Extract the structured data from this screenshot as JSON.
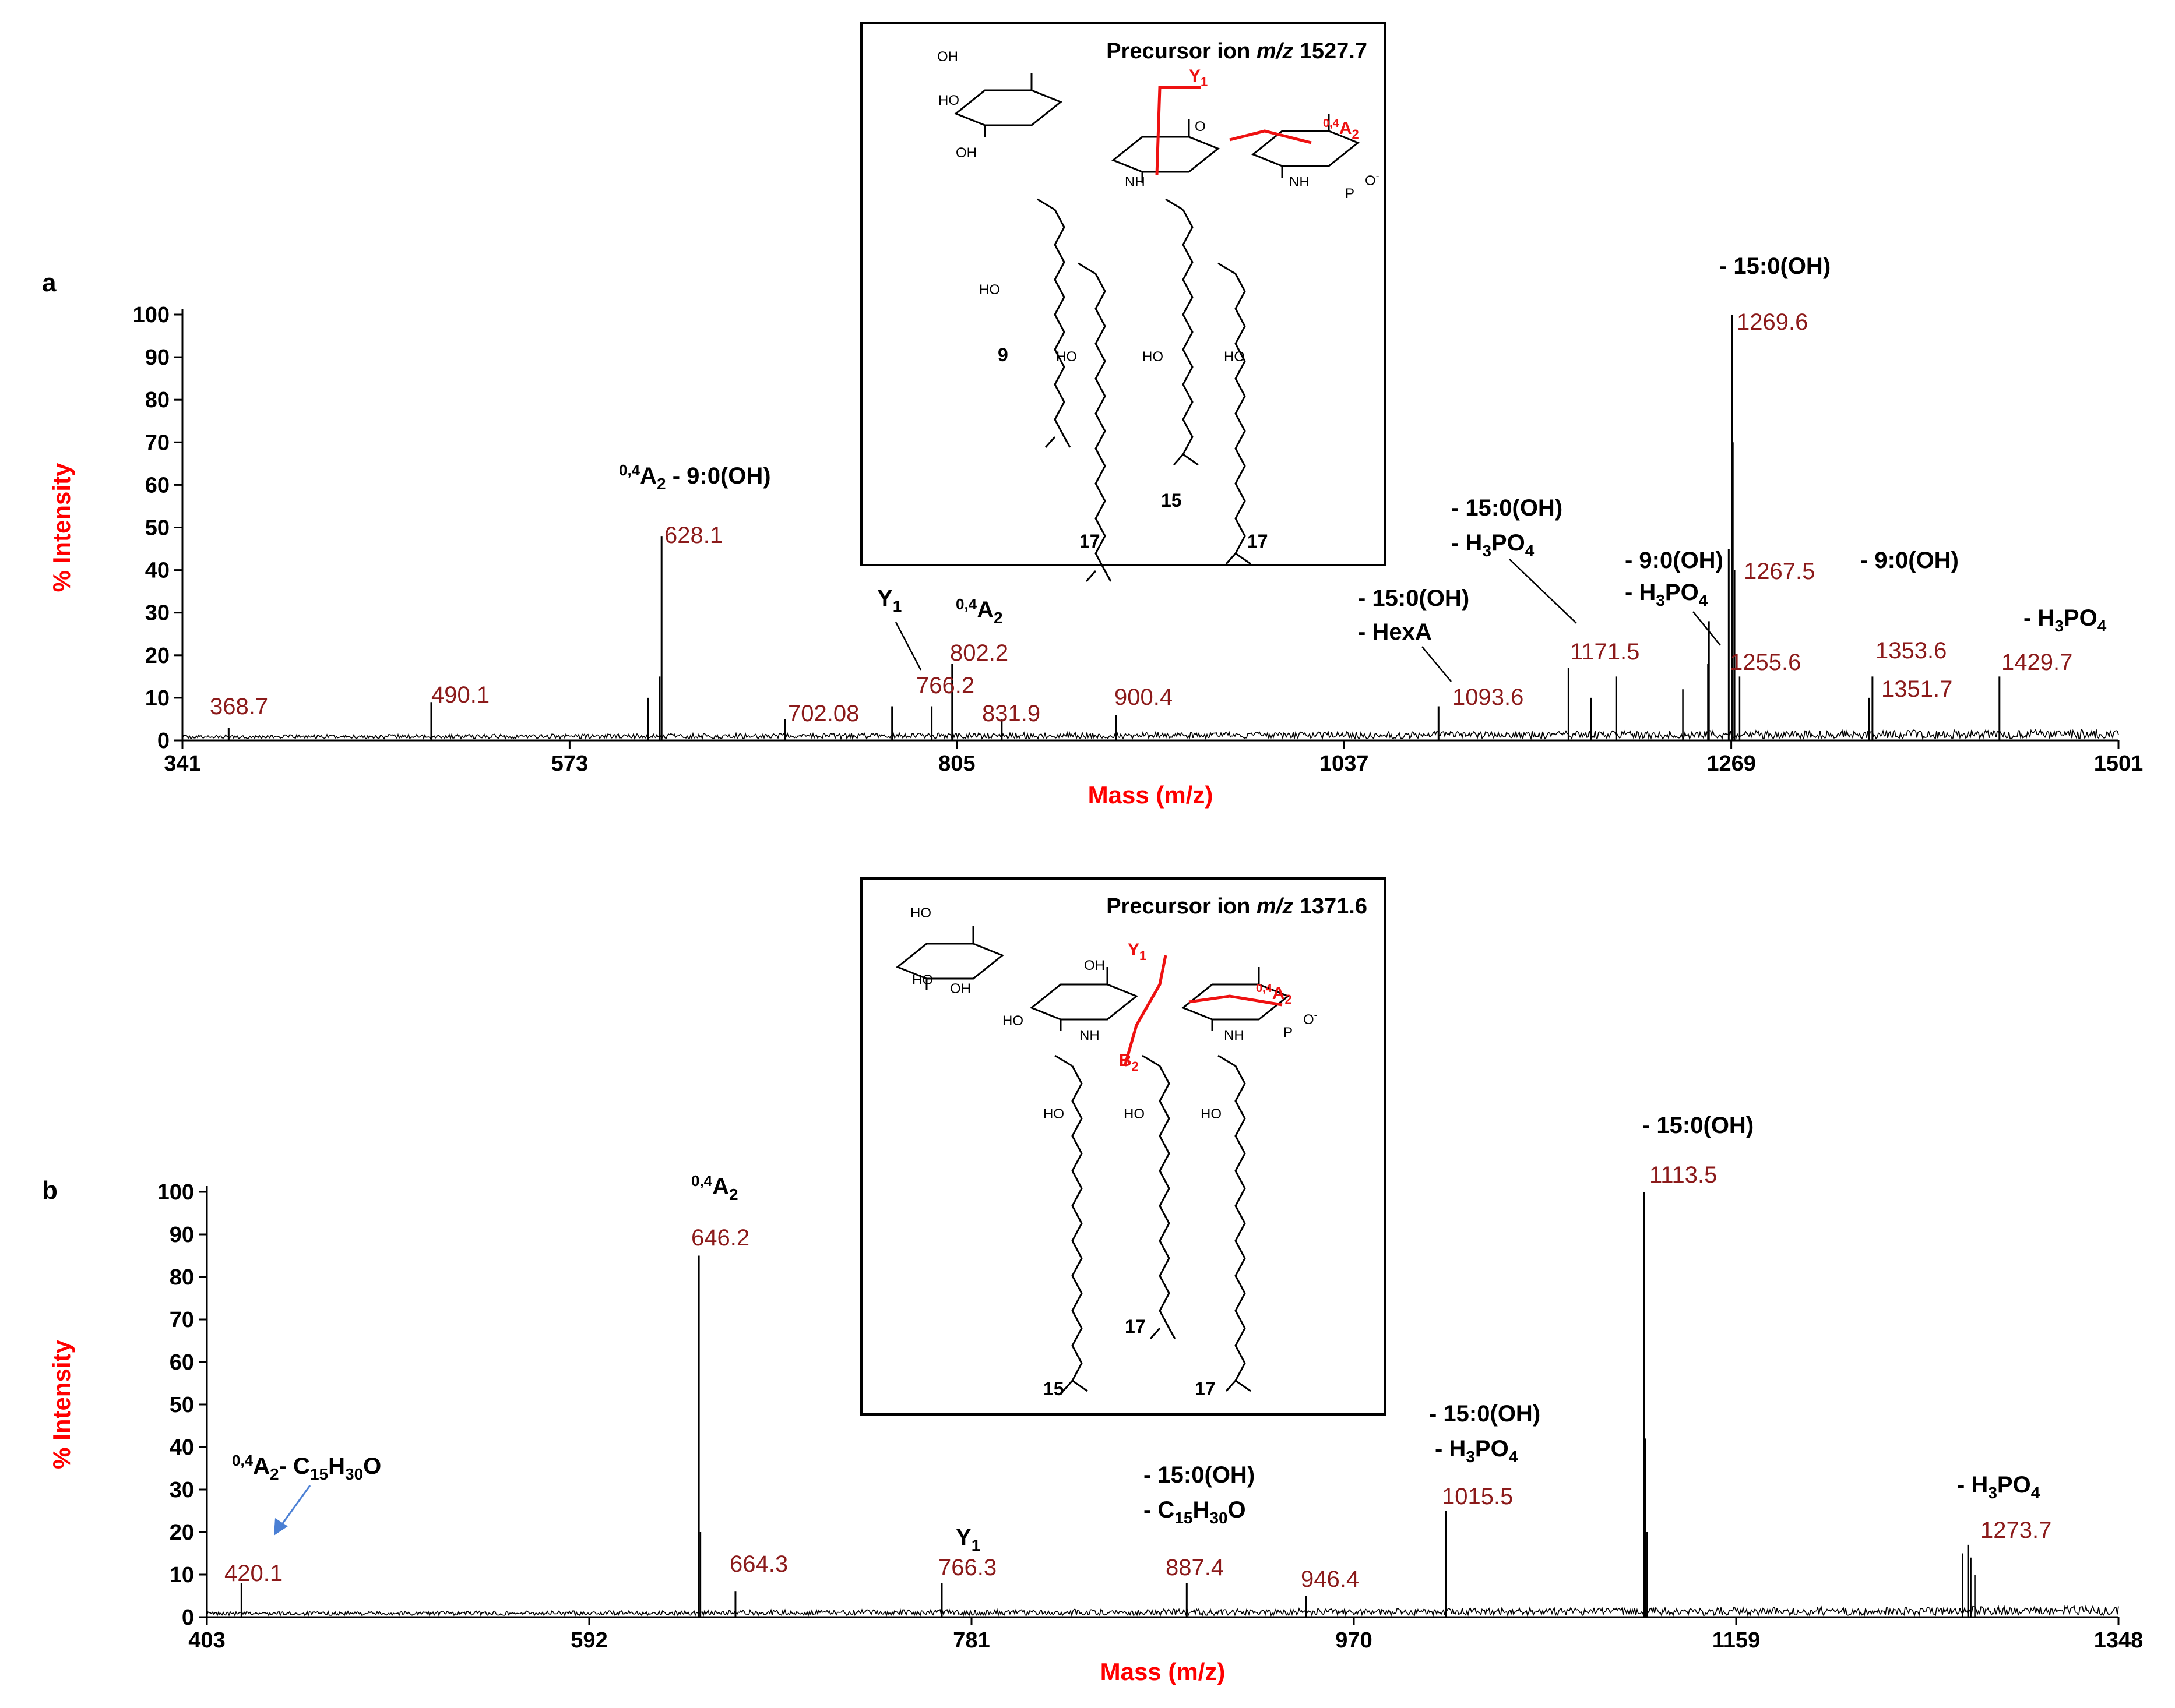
{
  "chart_data": [
    {
      "panel": "a",
      "type": "line",
      "title": "",
      "xlabel": "Mass (m/z)",
      "ylabel": "% Intensity",
      "xlim": [
        341,
        1501
      ],
      "ylim": [
        0,
        100
      ],
      "xticks": [
        341,
        573,
        805,
        1037,
        1269,
        1501
      ],
      "yticks": [
        0,
        10,
        20,
        30,
        40,
        50,
        60,
        70,
        80,
        90,
        100
      ],
      "peaks": [
        {
          "x": 368.7,
          "y": 3,
          "label": "368.7"
        },
        {
          "x": 490.1,
          "y": 9,
          "label": "490.1"
        },
        {
          "x": 628.1,
          "y": 48,
          "label": "628.1"
        },
        {
          "x": 702.08,
          "y": 5,
          "label": "702.08"
        },
        {
          "x": 766.2,
          "y": 8,
          "label": "766.2"
        },
        {
          "x": 802.2,
          "y": 18,
          "label": "802.2"
        },
        {
          "x": 831.9,
          "y": 5,
          "label": "831.9"
        },
        {
          "x": 900.4,
          "y": 6,
          "label": "900.4"
        },
        {
          "x": 1093.6,
          "y": 8,
          "label": "1093.6"
        },
        {
          "x": 1171.5,
          "y": 17,
          "label": "1171.5"
        },
        {
          "x": 1255.6,
          "y": 28,
          "label": "1255.6"
        },
        {
          "x": 1267.5,
          "y": 45,
          "label": "1267.5"
        },
        {
          "x": 1269.6,
          "y": 100,
          "label": "1269.6"
        },
        {
          "x": 1351.7,
          "y": 10,
          "label": "1351.7"
        },
        {
          "x": 1353.6,
          "y": 15,
          "label": "1353.6"
        },
        {
          "x": 1429.7,
          "y": 15,
          "label": "1429.7"
        }
      ],
      "minor_peaks": [
        {
          "x": 620,
          "y": 10
        },
        {
          "x": 627,
          "y": 15
        },
        {
          "x": 790,
          "y": 8
        },
        {
          "x": 1185,
          "y": 10
        },
        {
          "x": 1200,
          "y": 15
        },
        {
          "x": 1240,
          "y": 12
        },
        {
          "x": 1255,
          "y": 18
        },
        {
          "x": 1270,
          "y": 70
        },
        {
          "x": 1271,
          "y": 40
        },
        {
          "x": 1274,
          "y": 15
        }
      ],
      "annotations": [
        {
          "text_sup": "0,4",
          "text": "A",
          "text_sub": "2",
          "text_after": " - 9:0(OH)"
        },
        {
          "text": "Y",
          "text_sub": "1"
        },
        {
          "text_sup": "0,4",
          "text": "A",
          "text_sub": "2"
        },
        {
          "line1": "- 15:0(OH)",
          "line2": "- HexA"
        },
        {
          "line1": "- 15:0(OH)",
          "line2_pre": "- H",
          "line2_sub": "3",
          "line2_mid": "PO",
          "line2_sub2": "4"
        },
        {
          "line1": "- 9:0(OH)",
          "line2_pre": "- H",
          "line2_sub": "3",
          "line2_mid": "PO",
          "line2_sub2": "4"
        },
        {
          "line1": "- 15:0(OH)"
        },
        {
          "line1": "- 9:0(OH)"
        },
        {
          "line1_pre": "- H",
          "line1_sub": "3",
          "line1_mid": "PO",
          "line1_sub2": "4"
        }
      ],
      "inset": {
        "title_pre": "Precursor ion ",
        "title_ital": "m/z",
        "title_post": " 1527.7",
        "chain_labels": [
          "9",
          "17",
          "15",
          "17"
        ]
      }
    },
    {
      "panel": "b",
      "type": "line",
      "title": "",
      "xlabel": "Mass (m/z)",
      "ylabel": "% Intensity",
      "xlim": [
        403,
        1348
      ],
      "ylim": [
        0,
        100
      ],
      "xticks": [
        403,
        592,
        781,
        970,
        1159,
        1348
      ],
      "yticks": [
        0,
        10,
        20,
        30,
        40,
        50,
        60,
        70,
        80,
        90,
        100
      ],
      "peaks": [
        {
          "x": 420.1,
          "y": 8,
          "label": "420.1"
        },
        {
          "x": 646.2,
          "y": 85,
          "label": "646.2"
        },
        {
          "x": 664.3,
          "y": 6,
          "label": "664.3"
        },
        {
          "x": 766.3,
          "y": 8,
          "label": "766.3"
        },
        {
          "x": 887.4,
          "y": 8,
          "label": "887.4"
        },
        {
          "x": 946.4,
          "y": 5,
          "label": "946.4"
        },
        {
          "x": 1015.5,
          "y": 25,
          "label": "1015.5"
        },
        {
          "x": 1113.5,
          "y": 100,
          "label": "1113.5"
        },
        {
          "x": 1273.7,
          "y": 17,
          "label": "1273.7"
        }
      ],
      "minor_peaks": [
        {
          "x": 647,
          "y": 20
        },
        {
          "x": 1114,
          "y": 42
        },
        {
          "x": 1115,
          "y": 20
        },
        {
          "x": 1271,
          "y": 15
        },
        {
          "x": 1275,
          "y": 14
        },
        {
          "x": 1277,
          "y": 10
        }
      ],
      "annotations": [
        {
          "text_sup": "0,4",
          "text": "A",
          "text_sub": "2",
          "text_after": "- C",
          "sub2": "15",
          "after2": "H",
          "sub3": "30",
          "after3": "O"
        },
        {
          "text_sup": "0,4",
          "text": "A",
          "text_sub": "2"
        },
        {
          "text": "Y",
          "text_sub": "1"
        },
        {
          "line1": "- 15:0(OH)",
          "line2_pre": "- C",
          "line2_sub": "15",
          "line2_mid": "H",
          "line2_sub2": "30",
          "line2_end": "O"
        },
        {
          "line1": "- 15:0(OH)",
          "line2_pre": "- H",
          "line2_sub": "3",
          "line2_mid": "PO",
          "line2_sub2": "4"
        },
        {
          "line1": "- 15:0(OH)"
        },
        {
          "line1_pre": "- H",
          "line1_sub": "3",
          "line1_mid": "PO",
          "line1_sub2": "4"
        }
      ],
      "inset": {
        "title_pre": "Precursor ion ",
        "title_ital": "m/z",
        "title_post": " 1371.6",
        "chain_labels": [
          "17",
          "15",
          "17"
        ]
      }
    }
  ],
  "colors": {
    "axis_title": "#ff0000",
    "peak_label": "#8b1a1a",
    "trace": "#000000",
    "cleavage": "#ee1111",
    "arrow": "#4a7fd4"
  },
  "mol_text": {
    "oh": "OH",
    "ho": "HO",
    "nh": "NH",
    "o": "O",
    "p": "P",
    "o_minus": "O",
    "minus": "-",
    "y": "Y",
    "sub1": "1",
    "a": "A",
    "sup04": "0,4",
    "sub2": "2",
    "b": "B"
  }
}
